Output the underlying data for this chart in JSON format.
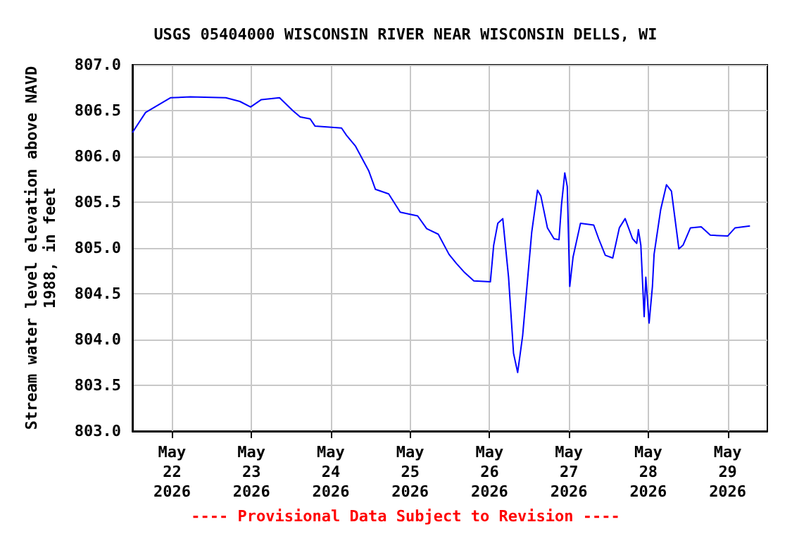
{
  "chart_data": {
    "type": "line",
    "title": "USGS 05404000 WISCONSIN RIVER NEAR WISCONSIN DELLS, WI",
    "ylabel": "Stream water level elevation above NAVD\n1988, in feet",
    "annotations": [
      "---- Provisional Data Subject to Revision ----"
    ],
    "x": [
      "2026-05-21T12:00",
      "2026-05-21T16:00",
      "2026-05-21T23:30",
      "2026-05-22T05:30",
      "2026-05-22T16:15",
      "2026-05-22T20:30",
      "2026-05-22T23:45",
      "2026-05-23T03:00",
      "2026-05-23T08:30",
      "2026-05-23T12:30",
      "2026-05-23T14:45",
      "2026-05-23T17:45",
      "2026-05-23T19:15",
      "2026-05-24T03:15",
      "2026-05-24T04:45",
      "2026-05-24T07:30",
      "2026-05-24T11:30",
      "2026-05-24T13:30",
      "2026-05-24T17:30",
      "2026-05-24T21:00",
      "2026-05-25T02:15",
      "2026-05-25T05:00",
      "2026-05-25T08:30",
      "2026-05-25T11:45",
      "2026-05-25T14:00",
      "2026-05-25T16:30",
      "2026-05-25T19:15",
      "2026-05-26T00:15",
      "2026-05-26T01:15",
      "2026-05-26T02:30",
      "2026-05-26T04:00",
      "2026-05-26T05:45",
      "2026-05-26T07:15",
      "2026-05-26T08:30",
      "2026-05-26T10:00",
      "2026-05-26T12:45",
      "2026-05-26T14:30",
      "2026-05-26T15:30",
      "2026-05-26T17:30",
      "2026-05-26T19:30",
      "2026-05-26T21:00",
      "2026-05-26T21:45",
      "2026-05-26T22:45",
      "2026-05-26T23:30",
      "2026-05-27T00:15",
      "2026-05-27T01:15",
      "2026-05-27T03:30",
      "2026-05-27T07:30",
      "2026-05-27T09:00",
      "2026-05-27T11:00",
      "2026-05-27T13:15",
      "2026-05-27T15:15",
      "2026-05-27T17:00",
      "2026-05-27T19:15",
      "2026-05-27T20:30",
      "2026-05-27T21:00",
      "2026-05-27T21:45",
      "2026-05-27T22:45",
      "2026-05-27T23:15",
      "2026-05-28T00:15",
      "2026-05-28T01:15",
      "2026-05-28T01:45",
      "2026-05-28T03:45",
      "2026-05-28T05:30",
      "2026-05-28T07:00",
      "2026-05-28T09:15",
      "2026-05-28T10:30",
      "2026-05-28T12:45",
      "2026-05-28T16:00",
      "2026-05-28T18:45",
      "2026-05-29T00:00",
      "2026-05-29T02:15",
      "2026-05-29T06:45"
    ],
    "series": [
      {
        "color": "#0000ff",
        "values": [
          806.26,
          806.48,
          806.64,
          806.65,
          806.64,
          806.6,
          806.54,
          806.62,
          806.64,
          806.5,
          806.43,
          806.41,
          806.33,
          806.31,
          806.23,
          806.11,
          805.84,
          805.64,
          805.59,
          805.39,
          805.35,
          805.21,
          805.15,
          804.93,
          804.83,
          804.73,
          804.64,
          804.63,
          805.03,
          805.27,
          805.32,
          804.68,
          803.85,
          803.64,
          804.04,
          805.17,
          805.63,
          805.57,
          805.22,
          805.1,
          805.09,
          805.47,
          805.82,
          805.67,
          804.58,
          804.9,
          805.27,
          805.25,
          805.1,
          804.92,
          804.89,
          805.22,
          805.32,
          805.1,
          805.05,
          805.2,
          805.03,
          804.25,
          804.68,
          804.18,
          804.58,
          804.93,
          805.42,
          805.69,
          805.62,
          804.99,
          805.03,
          805.22,
          805.23,
          805.14,
          805.13,
          805.22,
          805.24
        ]
      }
    ],
    "xlim": [
      "2026-05-21T12:00",
      "2026-05-29T12:00"
    ],
    "xticks": [
      {
        "value": "2026-05-22",
        "label": "May\n22\n2026"
      },
      {
        "value": "2026-05-23",
        "label": "May\n23\n2026"
      },
      {
        "value": "2026-05-24",
        "label": "May\n24\n2026"
      },
      {
        "value": "2026-05-25",
        "label": "May\n25\n2026"
      },
      {
        "value": "2026-05-26",
        "label": "May\n26\n2026"
      },
      {
        "value": "2026-05-27",
        "label": "May\n27\n2026"
      },
      {
        "value": "2026-05-28",
        "label": "May\n28\n2026"
      },
      {
        "value": "2026-05-29",
        "label": "May\n29\n2026"
      }
    ],
    "ylim": [
      803.0,
      807.0
    ],
    "yticks": [
      {
        "value": 803,
        "label": "803.0"
      },
      {
        "value": 803.5,
        "label": "803.5"
      },
      {
        "value": 804,
        "label": "804.0"
      },
      {
        "value": 804.5,
        "label": "804.5"
      },
      {
        "value": 805,
        "label": "805.0"
      },
      {
        "value": 805.5,
        "label": "805.5"
      },
      {
        "value": 806,
        "label": "806.0"
      },
      {
        "value": 806.5,
        "label": "806.5"
      },
      {
        "value": 807,
        "label": "807.0"
      }
    ],
    "grid": true,
    "marker": "none",
    "line_style": "solid"
  }
}
